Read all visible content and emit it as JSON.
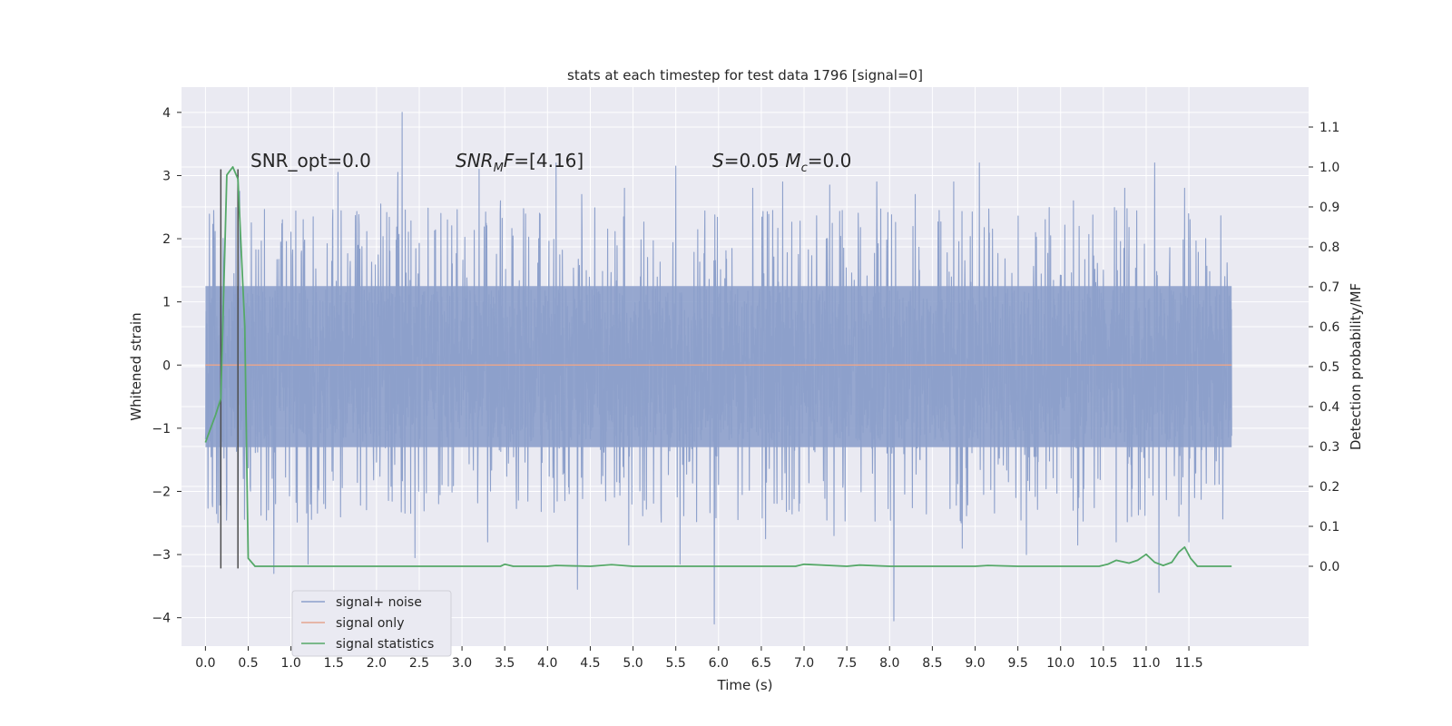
{
  "chart_data": {
    "type": "line",
    "title": "stats at each timestep for test data 1796 [signal=0]",
    "xlabel": "Time (s)",
    "ylabel": "Whitened strain",
    "y2label": "Detection probability/MF",
    "xlim": [
      -0.28,
      12.9
    ],
    "ylim": [
      -4.45,
      4.4
    ],
    "y2lim": [
      -0.2,
      1.2
    ],
    "xticks": [
      0.0,
      0.5,
      1.0,
      1.5,
      2.0,
      2.5,
      3.0,
      3.5,
      4.0,
      4.5,
      5.0,
      5.5,
      6.0,
      6.5,
      7.0,
      7.5,
      8.0,
      8.5,
      9.0,
      9.5,
      10.0,
      10.5,
      11.0,
      11.5
    ],
    "xtick_labels": [
      "0.0",
      "0.5",
      "1.0",
      "1.5",
      "2.0",
      "2.5",
      "3.0",
      "3.5",
      "4.0",
      "4.5",
      "5.0",
      "5.5",
      "6.0",
      "6.5",
      "7.0",
      "7.5",
      "8.0",
      "8.5",
      "9.0",
      "9.5",
      "10.0",
      "10.5",
      "11.0",
      "11.5"
    ],
    "yticks": [
      -4,
      -3,
      -2,
      -1,
      0,
      1,
      2,
      3,
      4
    ],
    "ytick_labels": [
      "−4",
      "−3",
      "−2",
      "−1",
      "0",
      "1",
      "2",
      "3",
      "4"
    ],
    "y2ticks": [
      0.0,
      0.1,
      0.2,
      0.3,
      0.4,
      0.5,
      0.6,
      0.7,
      0.8,
      0.9,
      1.0,
      1.1
    ],
    "y2tick_labels": [
      "0.0",
      "0.1",
      "0.2",
      "0.3",
      "0.4",
      "0.5",
      "0.6",
      "0.7",
      "0.8",
      "0.9",
      "1.0",
      "1.1"
    ],
    "grid": true,
    "legend_position": "lower-left",
    "legend": [
      "signal+ noise",
      "signal only",
      "signal statistics"
    ],
    "series": [
      {
        "name": "signal+ noise",
        "color": "#8da0cb",
        "t_start": 0.0,
        "t_end": 12.0,
        "band": [
          -1.3,
          1.25
        ],
        "peaks_top": [
          [
            0.1,
            2.0
          ],
          [
            0.25,
            2.9
          ],
          [
            0.4,
            2.75
          ],
          [
            0.9,
            2.3
          ],
          [
            1.55,
            3.05
          ],
          [
            2.05,
            2.55
          ],
          [
            2.25,
            3.05
          ],
          [
            2.3,
            4.0
          ],
          [
            3.2,
            3.1
          ],
          [
            3.45,
            2.6
          ],
          [
            4.1,
            3.2
          ],
          [
            4.4,
            2.7
          ],
          [
            4.9,
            2.8
          ],
          [
            5.5,
            3.15
          ],
          [
            5.95,
            3.1
          ],
          [
            6.4,
            2.8
          ],
          [
            6.75,
            2.9
          ],
          [
            7.3,
            2.85
          ],
          [
            7.85,
            2.9
          ],
          [
            8.3,
            2.7
          ],
          [
            8.75,
            2.9
          ],
          [
            9.05,
            3.2
          ],
          [
            9.6,
            2.9
          ],
          [
            10.15,
            2.6
          ],
          [
            10.75,
            2.8
          ],
          [
            11.1,
            3.2
          ],
          [
            11.45,
            2.8
          ]
        ],
        "peaks_bottom": [
          [
            0.25,
            -2.15
          ],
          [
            0.8,
            -3.3
          ],
          [
            1.2,
            -3.15
          ],
          [
            2.45,
            -3.05
          ],
          [
            3.3,
            -2.8
          ],
          [
            4.35,
            -3.55
          ],
          [
            4.95,
            -2.85
          ],
          [
            5.55,
            -3.15
          ],
          [
            5.95,
            -4.1
          ],
          [
            6.55,
            -2.75
          ],
          [
            7.35,
            -2.7
          ],
          [
            8.05,
            -4.05
          ],
          [
            8.85,
            -2.9
          ],
          [
            9.6,
            -3.0
          ],
          [
            10.2,
            -2.85
          ],
          [
            10.65,
            -2.8
          ],
          [
            11.15,
            -3.6
          ],
          [
            11.5,
            -2.8
          ]
        ]
      },
      {
        "name": "signal only",
        "color": "#e5a58f",
        "x": [
          0.0,
          12.0
        ],
        "y": [
          0.0,
          0.0
        ]
      },
      {
        "name": "signal statistics",
        "color": "#55a868",
        "axis": "right",
        "x": [
          0.0,
          0.12,
          0.18,
          0.25,
          0.32,
          0.38,
          0.46,
          0.5,
          0.58,
          0.65,
          1.0,
          1.5,
          1.95,
          2.0,
          2.5,
          2.6,
          3.0,
          3.45,
          3.5,
          3.6,
          4.0,
          4.1,
          4.5,
          4.75,
          5.0,
          5.5,
          5.95,
          6.0,
          6.5,
          6.9,
          7.0,
          7.5,
          7.65,
          8.0,
          8.5,
          9.0,
          9.15,
          9.5,
          10.0,
          10.45,
          10.55,
          10.65,
          10.8,
          10.9,
          11.0,
          11.1,
          11.2,
          11.3,
          11.38,
          11.45,
          11.52,
          11.6,
          12.0
        ],
        "y": [
          0.31,
          0.38,
          0.42,
          0.98,
          1.0,
          0.97,
          0.6,
          0.02,
          0.0,
          0.0,
          0.0,
          0.0,
          0.0,
          0.0,
          0.0,
          0.0,
          0.0,
          0.0,
          0.005,
          0.0,
          0.0,
          0.002,
          0.0,
          0.004,
          0.0,
          0.0,
          0.0,
          0.0,
          0.0,
          0.0,
          0.005,
          0.0,
          0.003,
          0.0,
          0.0,
          0.0,
          0.002,
          0.0,
          0.0,
          0.0,
          0.005,
          0.015,
          0.008,
          0.015,
          0.03,
          0.01,
          0.002,
          0.01,
          0.035,
          0.048,
          0.02,
          0.0,
          0.0
        ]
      }
    ],
    "vertical_lines": [
      {
        "x": 0.18,
        "color": "#4d4d4d"
      },
      {
        "x": 0.38,
        "color": "#4d4d4d"
      }
    ],
    "annotations": [
      {
        "text": "SNR_opt=0.0",
        "x": 0.2,
        "y": 3.1
      },
      {
        "text": "SNR_MF=[4.16]",
        "x": 2.6,
        "y": 3.1
      },
      {
        "text": "S=0.05   M_c=0.0",
        "x": 5.6,
        "y": 3.1
      }
    ]
  }
}
